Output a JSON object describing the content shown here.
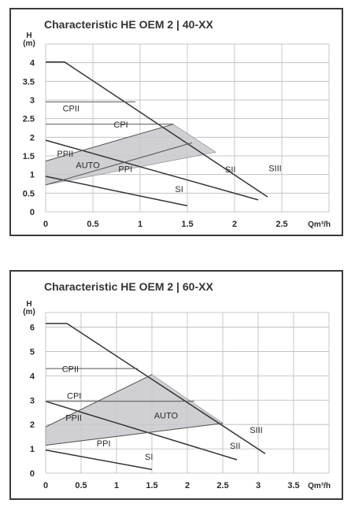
{
  "colors": {
    "frame": "#3a3a3a",
    "grid": "#b9b9b9",
    "curve": "#333333",
    "band": "#c8c8cc"
  },
  "chart_data": [
    {
      "type": "line",
      "title": "Characteristic HE OEM 2 | 40-XX",
      "ylabel_line1": "H",
      "ylabel_line2": "(m)",
      "xlabel": "Qm³/h",
      "xlim": [
        0,
        3
      ],
      "ylim": [
        0,
        4.5
      ],
      "x_ticks": [
        "0",
        "0.5",
        "1",
        "1.5",
        "2",
        "2.5"
      ],
      "y_ticks": [
        "0",
        "0.5",
        "1",
        "1.5",
        "2",
        "2.5",
        "3",
        "3.5",
        "4"
      ],
      "grid": true,
      "series": [
        {
          "name": "SIII",
          "points": [
            [
              0,
              4.02
            ],
            [
              0.2,
              4.02
            ],
            [
              2.35,
              0.4
            ]
          ]
        },
        {
          "name": "SII",
          "points": [
            [
              0,
              1.92
            ],
            [
              2.25,
              0.32
            ]
          ]
        },
        {
          "name": "SI",
          "points": [
            [
              0,
              0.95
            ],
            [
              1.5,
              0.16
            ]
          ]
        },
        {
          "name": "CPII",
          "points": [
            [
              0,
              2.95
            ],
            [
              0.95,
              2.95
            ]
          ]
        },
        {
          "name": "CPI",
          "points": [
            [
              0,
              2.35
            ],
            [
              1.35,
              2.35
            ]
          ]
        },
        {
          "name": "PPII",
          "points": [
            [
              0,
              1.36
            ],
            [
              1.35,
              2.35
            ]
          ]
        },
        {
          "name": "PPI",
          "points": [
            [
              0,
              0.72
            ],
            [
              1.55,
              1.85
            ]
          ]
        },
        {
          "name": "AUTO",
          "points": [
            [
              0,
              0.72
            ],
            [
              0,
              1.36
            ],
            [
              1.35,
              2.35
            ],
            [
              1.8,
              1.6
            ]
          ]
        }
      ],
      "labels": [
        {
          "text": "CPII",
          "x": 0.18,
          "y": 2.69
        },
        {
          "text": "CPI",
          "x": 0.72,
          "y": 2.26
        },
        {
          "text": "PPII",
          "x": 0.12,
          "y": 1.48
        },
        {
          "text": "AUTO",
          "x": 0.32,
          "y": 1.17
        },
        {
          "text": "PPI",
          "x": 0.77,
          "y": 1.07
        },
        {
          "text": "SII",
          "x": 1.9,
          "y": 1.06
        },
        {
          "text": "SIII",
          "x": 2.36,
          "y": 1.09
        },
        {
          "text": "SI",
          "x": 1.37,
          "y": 0.53
        }
      ]
    },
    {
      "type": "line",
      "title": "Characteristic HE OEM 2 | 60-XX",
      "ylabel_line1": "H",
      "ylabel_line2": "(m)",
      "xlabel": "Qm³/h",
      "xlim": [
        0,
        4
      ],
      "ylim": [
        0,
        6.6
      ],
      "x_ticks": [
        "0",
        "0.5",
        "1",
        "1.5",
        "2",
        "2.5",
        "3",
        "3.5"
      ],
      "y_ticks": [
        "0",
        "1",
        "2",
        "3",
        "4",
        "5",
        "6"
      ],
      "grid": true,
      "series": [
        {
          "name": "SIII",
          "points": [
            [
              0,
              6.15
            ],
            [
              0.3,
              6.15
            ],
            [
              3.1,
              0.8
            ]
          ]
        },
        {
          "name": "SII",
          "points": [
            [
              0,
              2.95
            ],
            [
              2.7,
              0.55
            ]
          ]
        },
        {
          "name": "SI",
          "points": [
            [
              0,
              0.95
            ],
            [
              1.5,
              0.15
            ]
          ]
        },
        {
          "name": "CPII",
          "points": [
            [
              0,
              4.3
            ],
            [
              1.3,
              4.3
            ]
          ]
        },
        {
          "name": "CPI",
          "points": [
            [
              0,
              2.95
            ],
            [
              2.1,
              2.95
            ]
          ]
        },
        {
          "name": "PPII",
          "points": [
            [
              0,
              1.9
            ],
            [
              1.5,
              4.05
            ]
          ]
        },
        {
          "name": "PPI",
          "points": [
            [
              0,
              1.15
            ],
            [
              2.5,
              2.05
            ]
          ]
        },
        {
          "name": "AUTO",
          "points": [
            [
              0,
              1.15
            ],
            [
              0,
              1.9
            ],
            [
              1.5,
              4.05
            ],
            [
              2.5,
              2.05
            ]
          ]
        }
      ],
      "labels": [
        {
          "text": "CPII",
          "x": 0.23,
          "y": 4.15
        },
        {
          "text": "CPI",
          "x": 0.3,
          "y": 3.05
        },
        {
          "text": "PPII",
          "x": 0.28,
          "y": 2.15
        },
        {
          "text": "AUTO",
          "x": 1.53,
          "y": 2.25
        },
        {
          "text": "PPI",
          "x": 0.72,
          "y": 1.1
        },
        {
          "text": "SIII",
          "x": 2.88,
          "y": 1.65
        },
        {
          "text": "SII",
          "x": 2.6,
          "y": 1.0
        },
        {
          "text": "SI",
          "x": 1.4,
          "y": 0.55
        }
      ]
    }
  ]
}
